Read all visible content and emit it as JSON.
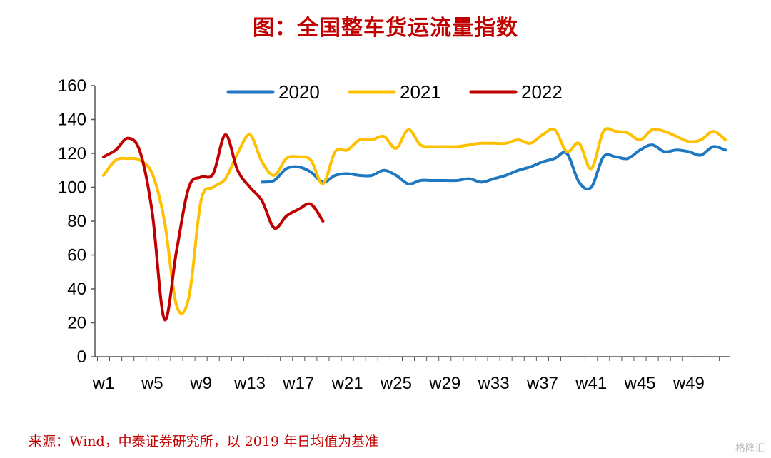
{
  "title": "图：全国整车货运流量指数",
  "source": "来源：Wind，中泰证券研究所，以 2019 年日均值为基准",
  "watermark": "格隆汇",
  "chart_data": {
    "type": "line",
    "ylim": [
      0,
      160
    ],
    "yticks": [
      0,
      20,
      40,
      60,
      80,
      100,
      120,
      140,
      160
    ],
    "xlim": [
      1,
      52
    ],
    "xticks": [
      "w1",
      "w5",
      "w9",
      "w13",
      "w17",
      "w21",
      "w25",
      "w29",
      "w33",
      "w37",
      "w41",
      "w45",
      "w49"
    ],
    "legend_position": "top",
    "series": [
      {
        "name": "2020",
        "color": "#1f77c0",
        "x": [
          14,
          15,
          16,
          17,
          18,
          19,
          20,
          21,
          22,
          23,
          24,
          25,
          26,
          27,
          28,
          29,
          30,
          31,
          32,
          33,
          34,
          35,
          36,
          37,
          38,
          39,
          40,
          41,
          42,
          43,
          44,
          45,
          46,
          47,
          48,
          49,
          50,
          51,
          52
        ],
        "values": [
          103,
          104,
          111,
          112,
          109,
          103,
          107,
          108,
          107,
          107,
          110,
          107,
          102,
          104,
          104,
          104,
          104,
          105,
          103,
          105,
          107,
          110,
          112,
          115,
          117,
          120,
          103,
          100,
          118,
          118,
          117,
          122,
          125,
          121,
          122,
          121,
          119,
          124,
          122
        ]
      },
      {
        "name": "2021",
        "color": "#ffc000",
        "x": [
          1,
          2,
          3,
          4,
          5,
          6,
          7,
          8,
          9,
          10,
          11,
          12,
          13,
          14,
          15,
          16,
          17,
          18,
          19,
          20,
          21,
          22,
          23,
          24,
          25,
          26,
          27,
          28,
          29,
          30,
          31,
          32,
          33,
          34,
          35,
          36,
          37,
          38,
          39,
          40,
          41,
          42,
          43,
          44,
          45,
          46,
          47,
          48,
          49,
          50,
          51,
          52
        ],
        "values": [
          107,
          116,
          117,
          116,
          108,
          80,
          30,
          35,
          92,
          100,
          105,
          120,
          131,
          115,
          107,
          117,
          118,
          116,
          102,
          121,
          122,
          128,
          128,
          130,
          123,
          134,
          125,
          124,
          124,
          124,
          125,
          126,
          126,
          126,
          128,
          126,
          131,
          134,
          121,
          126,
          111,
          133,
          133,
          132,
          128,
          134,
          133,
          130,
          127,
          128,
          133,
          128
        ]
      },
      {
        "name": "2022",
        "color": "#c00000",
        "x": [
          1,
          2,
          3,
          4,
          5,
          6,
          7,
          8,
          9,
          10,
          11,
          12,
          13,
          14,
          15,
          16,
          17,
          18,
          19
        ],
        "values": [
          118,
          122,
          129,
          121,
          85,
          22,
          63,
          100,
          106,
          108,
          131,
          110,
          100,
          92,
          76,
          83,
          87,
          90,
          80
        ]
      }
    ]
  }
}
